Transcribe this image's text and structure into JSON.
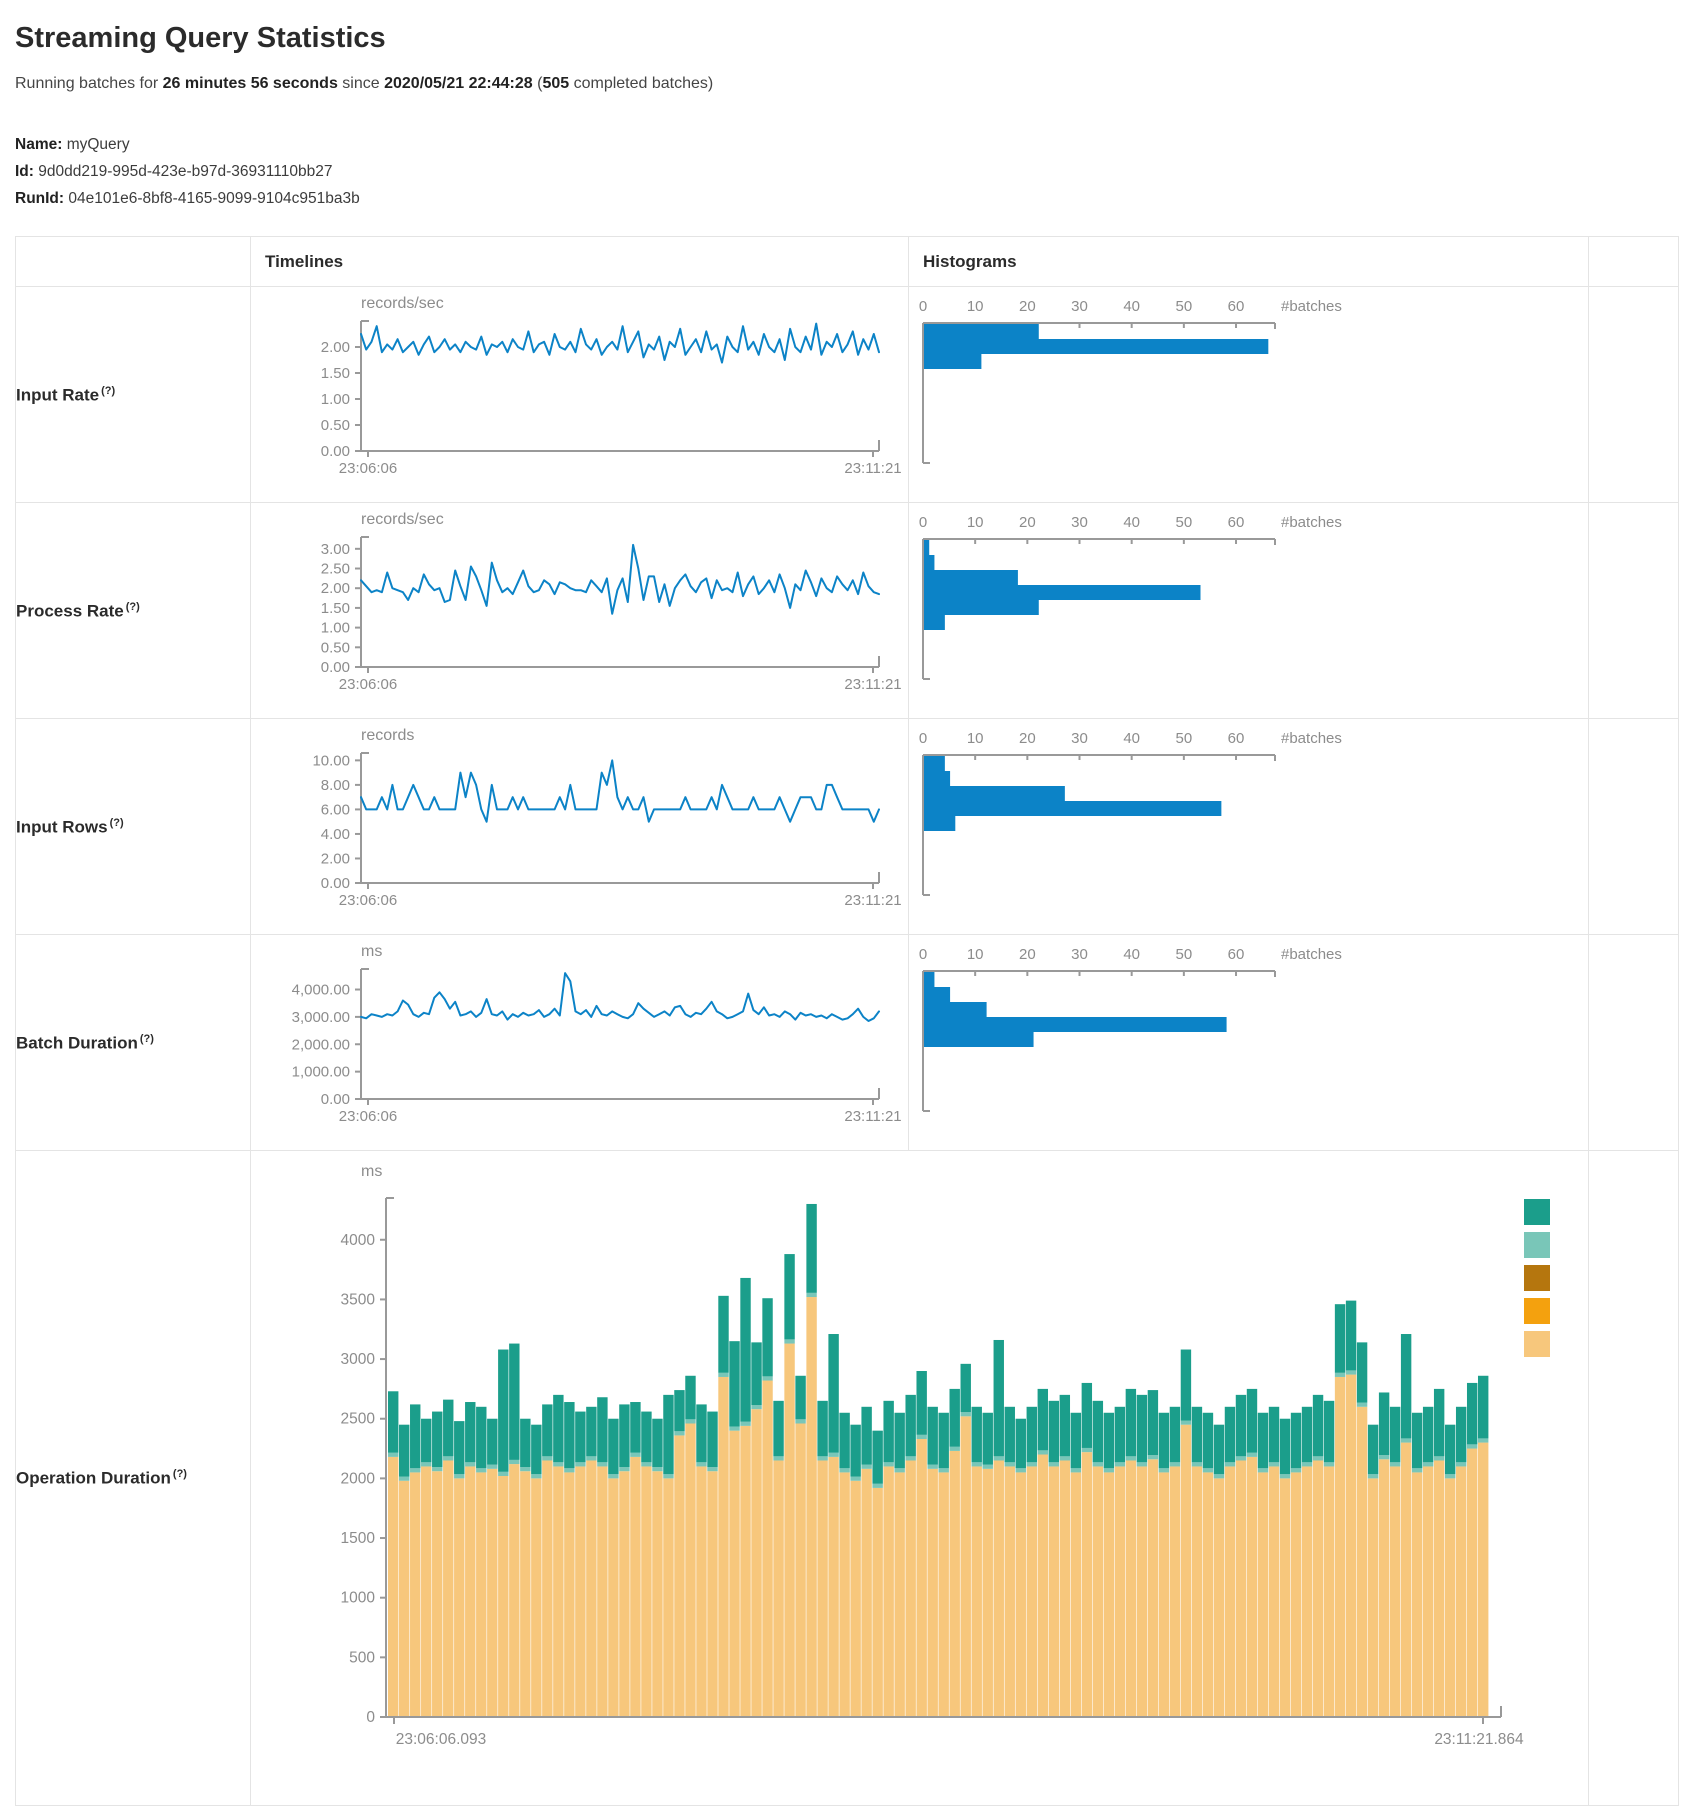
{
  "page": {
    "title": "Streaming Query Statistics",
    "subtitle": {
      "prefix": "Running batches for ",
      "duration": "26 minutes 56 seconds",
      "mid": " since ",
      "timestamp": "2020/05/21 22:44:28",
      "paren_open": " (",
      "batch_count": "505",
      "suffix": " completed batches)"
    },
    "name_label": "Name:",
    "name_value": "myQuery",
    "id_label": "Id:",
    "id_value": "9d0dd219-995d-423e-b97d-36931110bb27",
    "runid_label": "RunId:",
    "runid_value": "04e101e6-8bf8-4165-9099-9104c951ba3b"
  },
  "table": {
    "hint": "(?)",
    "headers": {
      "timelines": "Timelines",
      "histograms": "Histograms"
    },
    "rows": [
      {
        "label": "Input Rate"
      },
      {
        "label": "Process Rate"
      },
      {
        "label": "Input Rows"
      },
      {
        "label": "Batch Duration"
      },
      {
        "label": "Operation Duration"
      }
    ]
  },
  "colors": {
    "line_blue": "#0c83c7",
    "hist_blue": "#0c83c7",
    "axis_gray": "#999999",
    "tick_text_gray": "#8c8c8c",
    "teal": "#1b9e8b",
    "light_teal": "#79c6b8",
    "brown": "#b5760e",
    "orange": "#f4a10e",
    "tan": "#f7c77c"
  },
  "chart_data": [
    {
      "id": "input-rate-timeline",
      "type": "line",
      "unit": "records/sec",
      "x_start": "23:06:06",
      "x_end": "23:11:21",
      "ytick_values": [
        2,
        1.5,
        1,
        0.5,
        0
      ],
      "ytick_labels": [
        "2.00",
        "1.50",
        "1.00",
        "0.50",
        "0.00"
      ],
      "ymax": 2.5,
      "values": [
        2.25,
        1.95,
        2.1,
        2.4,
        1.9,
        2.05,
        1.95,
        2.15,
        1.9,
        2.0,
        2.1,
        1.85,
        2.05,
        2.2,
        1.9,
        2.0,
        2.15,
        1.95,
        2.05,
        1.9,
        2.1,
        2.0,
        1.95,
        2.2,
        1.85,
        2.05,
        2.0,
        2.1,
        1.9,
        2.15,
        2.0,
        1.95,
        2.3,
        1.9,
        2.05,
        2.1,
        1.85,
        2.25,
        2.0,
        1.95,
        2.1,
        1.9,
        2.35,
        2.05,
        1.95,
        2.15,
        1.85,
        2.0,
        2.1,
        1.95,
        2.4,
        1.9,
        2.1,
        2.3,
        1.8,
        2.05,
        1.95,
        2.2,
        1.75,
        2.1,
        2.0,
        2.35,
        1.85,
        2.0,
        2.15,
        1.9,
        2.3,
        1.95,
        2.05,
        1.7,
        2.2,
        2.0,
        1.9,
        2.4,
        1.95,
        2.1,
        1.85,
        2.25,
        2.0,
        1.9,
        2.15,
        1.75,
        2.35,
        2.0,
        1.9,
        2.2,
        1.95,
        2.45,
        1.85,
        2.1,
        2.0,
        2.25,
        1.9,
        2.05,
        2.3,
        1.85,
        2.15,
        1.95,
        2.25,
        1.9
      ]
    },
    {
      "id": "input-rate-histogram",
      "type": "histogram",
      "xtick_values": [
        0,
        10,
        20,
        30,
        40,
        50,
        60
      ],
      "xtick_labels": [
        "0",
        "10",
        "20",
        "30",
        "40",
        "50",
        "60"
      ],
      "axis_label": "#batches",
      "bin_counts": [
        22,
        66,
        11
      ]
    },
    {
      "id": "process-rate-timeline",
      "type": "line",
      "unit": "records/sec",
      "x_start": "23:06:06",
      "x_end": "23:11:21",
      "ytick_values": [
        3,
        2.5,
        2,
        1.5,
        1,
        0.5,
        0
      ],
      "ytick_labels": [
        "3.00",
        "2.50",
        "2.00",
        "1.50",
        "1.00",
        "0.50",
        "0.00"
      ],
      "ymax": 3.3,
      "values": [
        2.2,
        2.05,
        1.9,
        1.95,
        1.9,
        2.4,
        2.0,
        1.95,
        1.9,
        1.7,
        2.0,
        1.9,
        2.35,
        2.1,
        1.95,
        2.0,
        1.65,
        1.7,
        2.45,
        2.05,
        1.7,
        2.55,
        2.3,
        1.95,
        1.55,
        2.65,
        2.2,
        1.9,
        2.0,
        1.85,
        2.15,
        2.45,
        2.05,
        1.9,
        1.95,
        2.2,
        2.1,
        1.85,
        2.15,
        2.1,
        2.0,
        1.95,
        1.95,
        1.9,
        2.2,
        2.05,
        1.9,
        2.25,
        1.35,
        1.95,
        2.25,
        1.65,
        3.1,
        2.5,
        1.7,
        2.3,
        2.3,
        1.65,
        2.1,
        1.55,
        2.0,
        2.2,
        2.35,
        2.05,
        1.9,
        2.15,
        2.25,
        1.75,
        2.2,
        1.95,
        2.0,
        1.9,
        2.4,
        1.8,
        2.1,
        2.3,
        1.85,
        2.0,
        2.2,
        1.9,
        2.35,
        2.0,
        1.5,
        2.1,
        1.95,
        2.45,
        2.15,
        1.8,
        2.25,
        2.0,
        1.9,
        2.3,
        2.1,
        1.95,
        2.2,
        1.85,
        2.4,
        2.05,
        1.9,
        1.85
      ]
    },
    {
      "id": "process-rate-histogram",
      "type": "histogram",
      "xtick_values": [
        0,
        10,
        20,
        30,
        40,
        50,
        60
      ],
      "xtick_labels": [
        "0",
        "10",
        "20",
        "30",
        "40",
        "50",
        "60"
      ],
      "axis_label": "#batches",
      "bin_counts": [
        1,
        2,
        18,
        53,
        22,
        4
      ]
    },
    {
      "id": "input-rows-timeline",
      "type": "line",
      "unit": "records",
      "x_start": "23:06:06",
      "x_end": "23:11:21",
      "ytick_values": [
        10,
        8,
        6,
        4,
        2,
        0
      ],
      "ytick_labels": [
        "10.00",
        "8.00",
        "6.00",
        "4.00",
        "2.00",
        "0.00"
      ],
      "ymax": 10.6,
      "values": [
        7,
        6,
        6,
        6,
        7,
        6,
        8,
        6,
        6,
        7,
        8,
        7,
        6,
        6,
        7,
        6,
        6,
        6,
        6,
        9,
        7,
        9,
        8,
        6,
        5,
        8,
        6,
        6,
        6,
        7,
        6,
        7,
        6,
        6,
        6,
        6,
        6,
        6,
        7,
        6,
        8,
        6,
        6,
        6,
        6,
        6,
        9,
        8,
        10,
        7,
        6,
        7,
        6,
        6,
        7,
        5,
        6,
        6,
        6,
        6,
        6,
        6,
        7,
        6,
        6,
        6,
        6,
        7,
        6,
        8,
        7,
        6,
        6,
        6,
        6,
        7,
        6,
        6,
        6,
        6,
        7,
        6,
        5,
        6,
        7,
        7,
        7,
        6,
        6,
        8,
        8,
        7,
        6,
        6,
        6,
        6,
        6,
        6,
        5,
        6
      ]
    },
    {
      "id": "input-rows-histogram",
      "type": "histogram",
      "xtick_values": [
        0,
        10,
        20,
        30,
        40,
        50,
        60
      ],
      "xtick_labels": [
        "0",
        "10",
        "20",
        "30",
        "40",
        "50",
        "60"
      ],
      "axis_label": "#batches",
      "bin_counts": [
        4,
        5,
        27,
        57,
        6
      ]
    },
    {
      "id": "batch-duration-timeline",
      "type": "line",
      "unit": "ms",
      "x_start": "23:06:06",
      "x_end": "23:11:21",
      "ytick_values": [
        4000,
        3000,
        2000,
        1000,
        0
      ],
      "ytick_labels": [
        "4,000.00",
        "3,000.00",
        "2,000.00",
        "1,000.00",
        "0.00"
      ],
      "ymax": 4750,
      "values": [
        3000,
        2950,
        3100,
        3050,
        3000,
        3100,
        3050,
        3200,
        3600,
        3450,
        3100,
        3000,
        3150,
        3100,
        3700,
        3900,
        3650,
        3300,
        3550,
        3050,
        3100,
        3200,
        3000,
        3150,
        3650,
        3100,
        3050,
        3200,
        2900,
        3100,
        3000,
        3150,
        3050,
        3100,
        3250,
        3000,
        3100,
        3300,
        3050,
        4600,
        4300,
        3200,
        3100,
        3250,
        3000,
        3400,
        3100,
        3050,
        3200,
        3100,
        3000,
        2950,
        3100,
        3500,
        3300,
        3150,
        3000,
        3100,
        3200,
        3050,
        3350,
        3400,
        3100,
        3000,
        3150,
        3100,
        3300,
        3550,
        3200,
        3100,
        2950,
        3000,
        3100,
        3200,
        3850,
        3250,
        3100,
        3350,
        3050,
        3100,
        3000,
        3200,
        3100,
        2900,
        3150,
        3050,
        3100,
        3000,
        3050,
        2950,
        3100,
        3000,
        2900,
        2950,
        3100,
        3300,
        3000,
        2850,
        2950,
        3200
      ]
    },
    {
      "id": "batch-duration-histogram",
      "type": "histogram",
      "xtick_values": [
        0,
        10,
        20,
        30,
        40,
        50,
        60
      ],
      "xtick_labels": [
        "0",
        "10",
        "20",
        "30",
        "40",
        "50",
        "60"
      ],
      "axis_label": "#batches",
      "bin_counts": [
        2,
        5,
        12,
        58,
        21
      ]
    },
    {
      "id": "operation-duration-chart",
      "type": "stacked-bar",
      "unit": "ms",
      "x_start": "23:06:06.093",
      "x_end": "23:11:21.864",
      "ytick_values": [
        4000,
        3500,
        3000,
        2500,
        2000,
        1500,
        1000,
        500,
        0
      ],
      "ytick_labels": [
        "4000",
        "3500",
        "3000",
        "2500",
        "2000",
        "1500",
        "1000",
        "500",
        "0"
      ],
      "ymax": 4350,
      "sliver": 35,
      "base": [
        2180,
        1980,
        2050,
        2100,
        2060,
        2150,
        2000,
        2100,
        2050,
        2080,
        2020,
        2120,
        2060,
        2000,
        2150,
        2100,
        2050,
        2100,
        2150,
        2100,
        2000,
        2060,
        2180,
        2100,
        2060,
        2000,
        2360,
        2460,
        2100,
        2060,
        2850,
        2400,
        2440,
        2580,
        2820,
        2150,
        3130,
        2460,
        3520,
        2150,
        2180,
        2050,
        1980,
        2080,
        1920,
        2100,
        2050,
        2150,
        2330,
        2080,
        2050,
        2230,
        2520,
        2100,
        2080,
        2150,
        2100,
        2050,
        2100,
        2200,
        2100,
        2150,
        2050,
        2220,
        2100,
        2050,
        2100,
        2150,
        2100,
        2160,
        2050,
        2100,
        2450,
        2100,
        2050,
        2000,
        2100,
        2150,
        2180,
        2050,
        2100,
        2000,
        2050,
        2100,
        2150,
        2100,
        2850,
        2870,
        2600,
        2000,
        2160,
        2100,
        2300,
        2050,
        2100,
        2150,
        2000,
        2100,
        2250,
        2300
      ],
      "totals": [
        2730,
        2450,
        2620,
        2500,
        2560,
        2660,
        2480,
        2640,
        2600,
        2500,
        3080,
        3130,
        2500,
        2450,
        2620,
        2700,
        2640,
        2560,
        2600,
        2680,
        2500,
        2620,
        2640,
        2560,
        2500,
        2700,
        2740,
        2860,
        2620,
        2560,
        3530,
        3150,
        3680,
        3140,
        3510,
        2650,
        3880,
        2860,
        4300,
        2650,
        3210,
        2550,
        2450,
        2600,
        2400,
        2650,
        2550,
        2700,
        2900,
        2600,
        2550,
        2750,
        2960,
        2600,
        2550,
        3160,
        2600,
        2500,
        2600,
        2750,
        2650,
        2700,
        2550,
        2800,
        2650,
        2550,
        2600,
        2750,
        2700,
        2740,
        2550,
        2600,
        3080,
        2600,
        2550,
        2450,
        2600,
        2700,
        2750,
        2550,
        2600,
        2500,
        2550,
        2600,
        2700,
        2650,
        3460,
        3490,
        3140,
        2450,
        2720,
        2600,
        3210,
        2550,
        2600,
        2750,
        2450,
        2600,
        2800,
        2860
      ],
      "legend_colors": [
        "#1b9e8b",
        "#79c6b8",
        "#b5760e",
        "#f4a10e",
        "#f7c77c"
      ]
    }
  ]
}
